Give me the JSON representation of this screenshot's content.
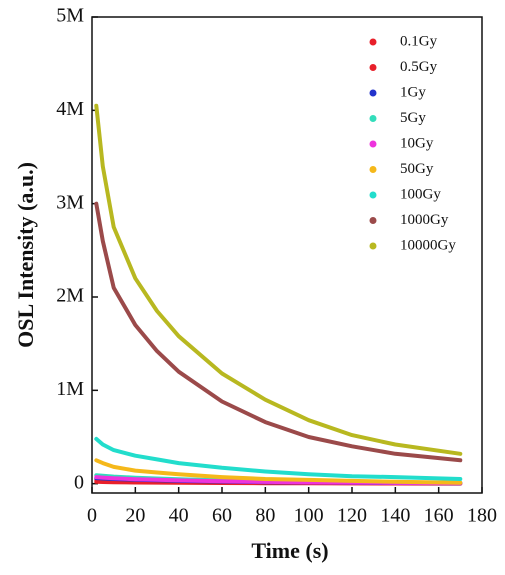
{
  "chart_data": {
    "type": "line",
    "xlabel": "Time (s)",
    "ylabel": "OSL Intensity (a.u.)",
    "x": [
      2,
      5,
      10,
      20,
      30,
      40,
      60,
      80,
      100,
      120,
      140,
      170
    ],
    "xlim": [
      0,
      180
    ],
    "xticks": [
      0,
      20,
      40,
      60,
      80,
      100,
      120,
      140,
      160,
      180
    ],
    "ylim": [
      -100000,
      5000000
    ],
    "yticks": [
      0,
      {
        "value": 1000000,
        "label": "1M"
      },
      {
        "value": 2000000,
        "label": "2M"
      },
      {
        "value": 3000000,
        "label": "3M"
      },
      {
        "value": 4000000,
        "label": "4M"
      },
      {
        "value": 5000000,
        "label": "5M"
      }
    ],
    "series": [
      {
        "name": "0.1Gy",
        "color": "#e8202a",
        "values": [
          20000,
          18000,
          16000,
          13000,
          11000,
          9000,
          7000,
          5000,
          4000,
          3000,
          2000,
          1000
        ]
      },
      {
        "name": "0.5Gy",
        "color": "#e8202a",
        "values": [
          40000,
          37000,
          33000,
          27000,
          23000,
          19000,
          14000,
          10000,
          8000,
          6000,
          5000,
          3000
        ]
      },
      {
        "name": "1Gy",
        "color": "#2233cc",
        "values": [
          60000,
          55000,
          50000,
          42000,
          36000,
          30000,
          22000,
          16000,
          12000,
          9000,
          7000,
          5000
        ]
      },
      {
        "name": "5Gy",
        "color": "#33ddbb",
        "values": [
          90000,
          84000,
          76000,
          64000,
          55000,
          47000,
          35000,
          26000,
          20000,
          15000,
          12000,
          9000
        ]
      },
      {
        "name": "10Gy",
        "color": "#ee33dd",
        "values": [
          70000,
          65000,
          58000,
          48000,
          41000,
          35000,
          26000,
          19000,
          14000,
          11000,
          8000,
          6000
        ]
      },
      {
        "name": "50Gy",
        "color": "#f5b81a",
        "values": [
          250000,
          220000,
          180000,
          140000,
          120000,
          100000,
          70000,
          50000,
          40000,
          30000,
          20000,
          10000
        ]
      },
      {
        "name": "100Gy",
        "color": "#22ddcc",
        "values": [
          480000,
          420000,
          360000,
          300000,
          260000,
          220000,
          170000,
          130000,
          100000,
          80000,
          70000,
          50000
        ]
      },
      {
        "name": "1000Gy",
        "color": "#9b4a4a",
        "values": [
          3000000,
          2600000,
          2100000,
          1700000,
          1420000,
          1200000,
          880000,
          660000,
          500000,
          400000,
          320000,
          250000
        ]
      },
      {
        "name": "10000Gy",
        "color": "#b8b820",
        "values": [
          4050000,
          3400000,
          2750000,
          2200000,
          1850000,
          1580000,
          1180000,
          900000,
          680000,
          520000,
          420000,
          320000
        ]
      }
    ]
  }
}
